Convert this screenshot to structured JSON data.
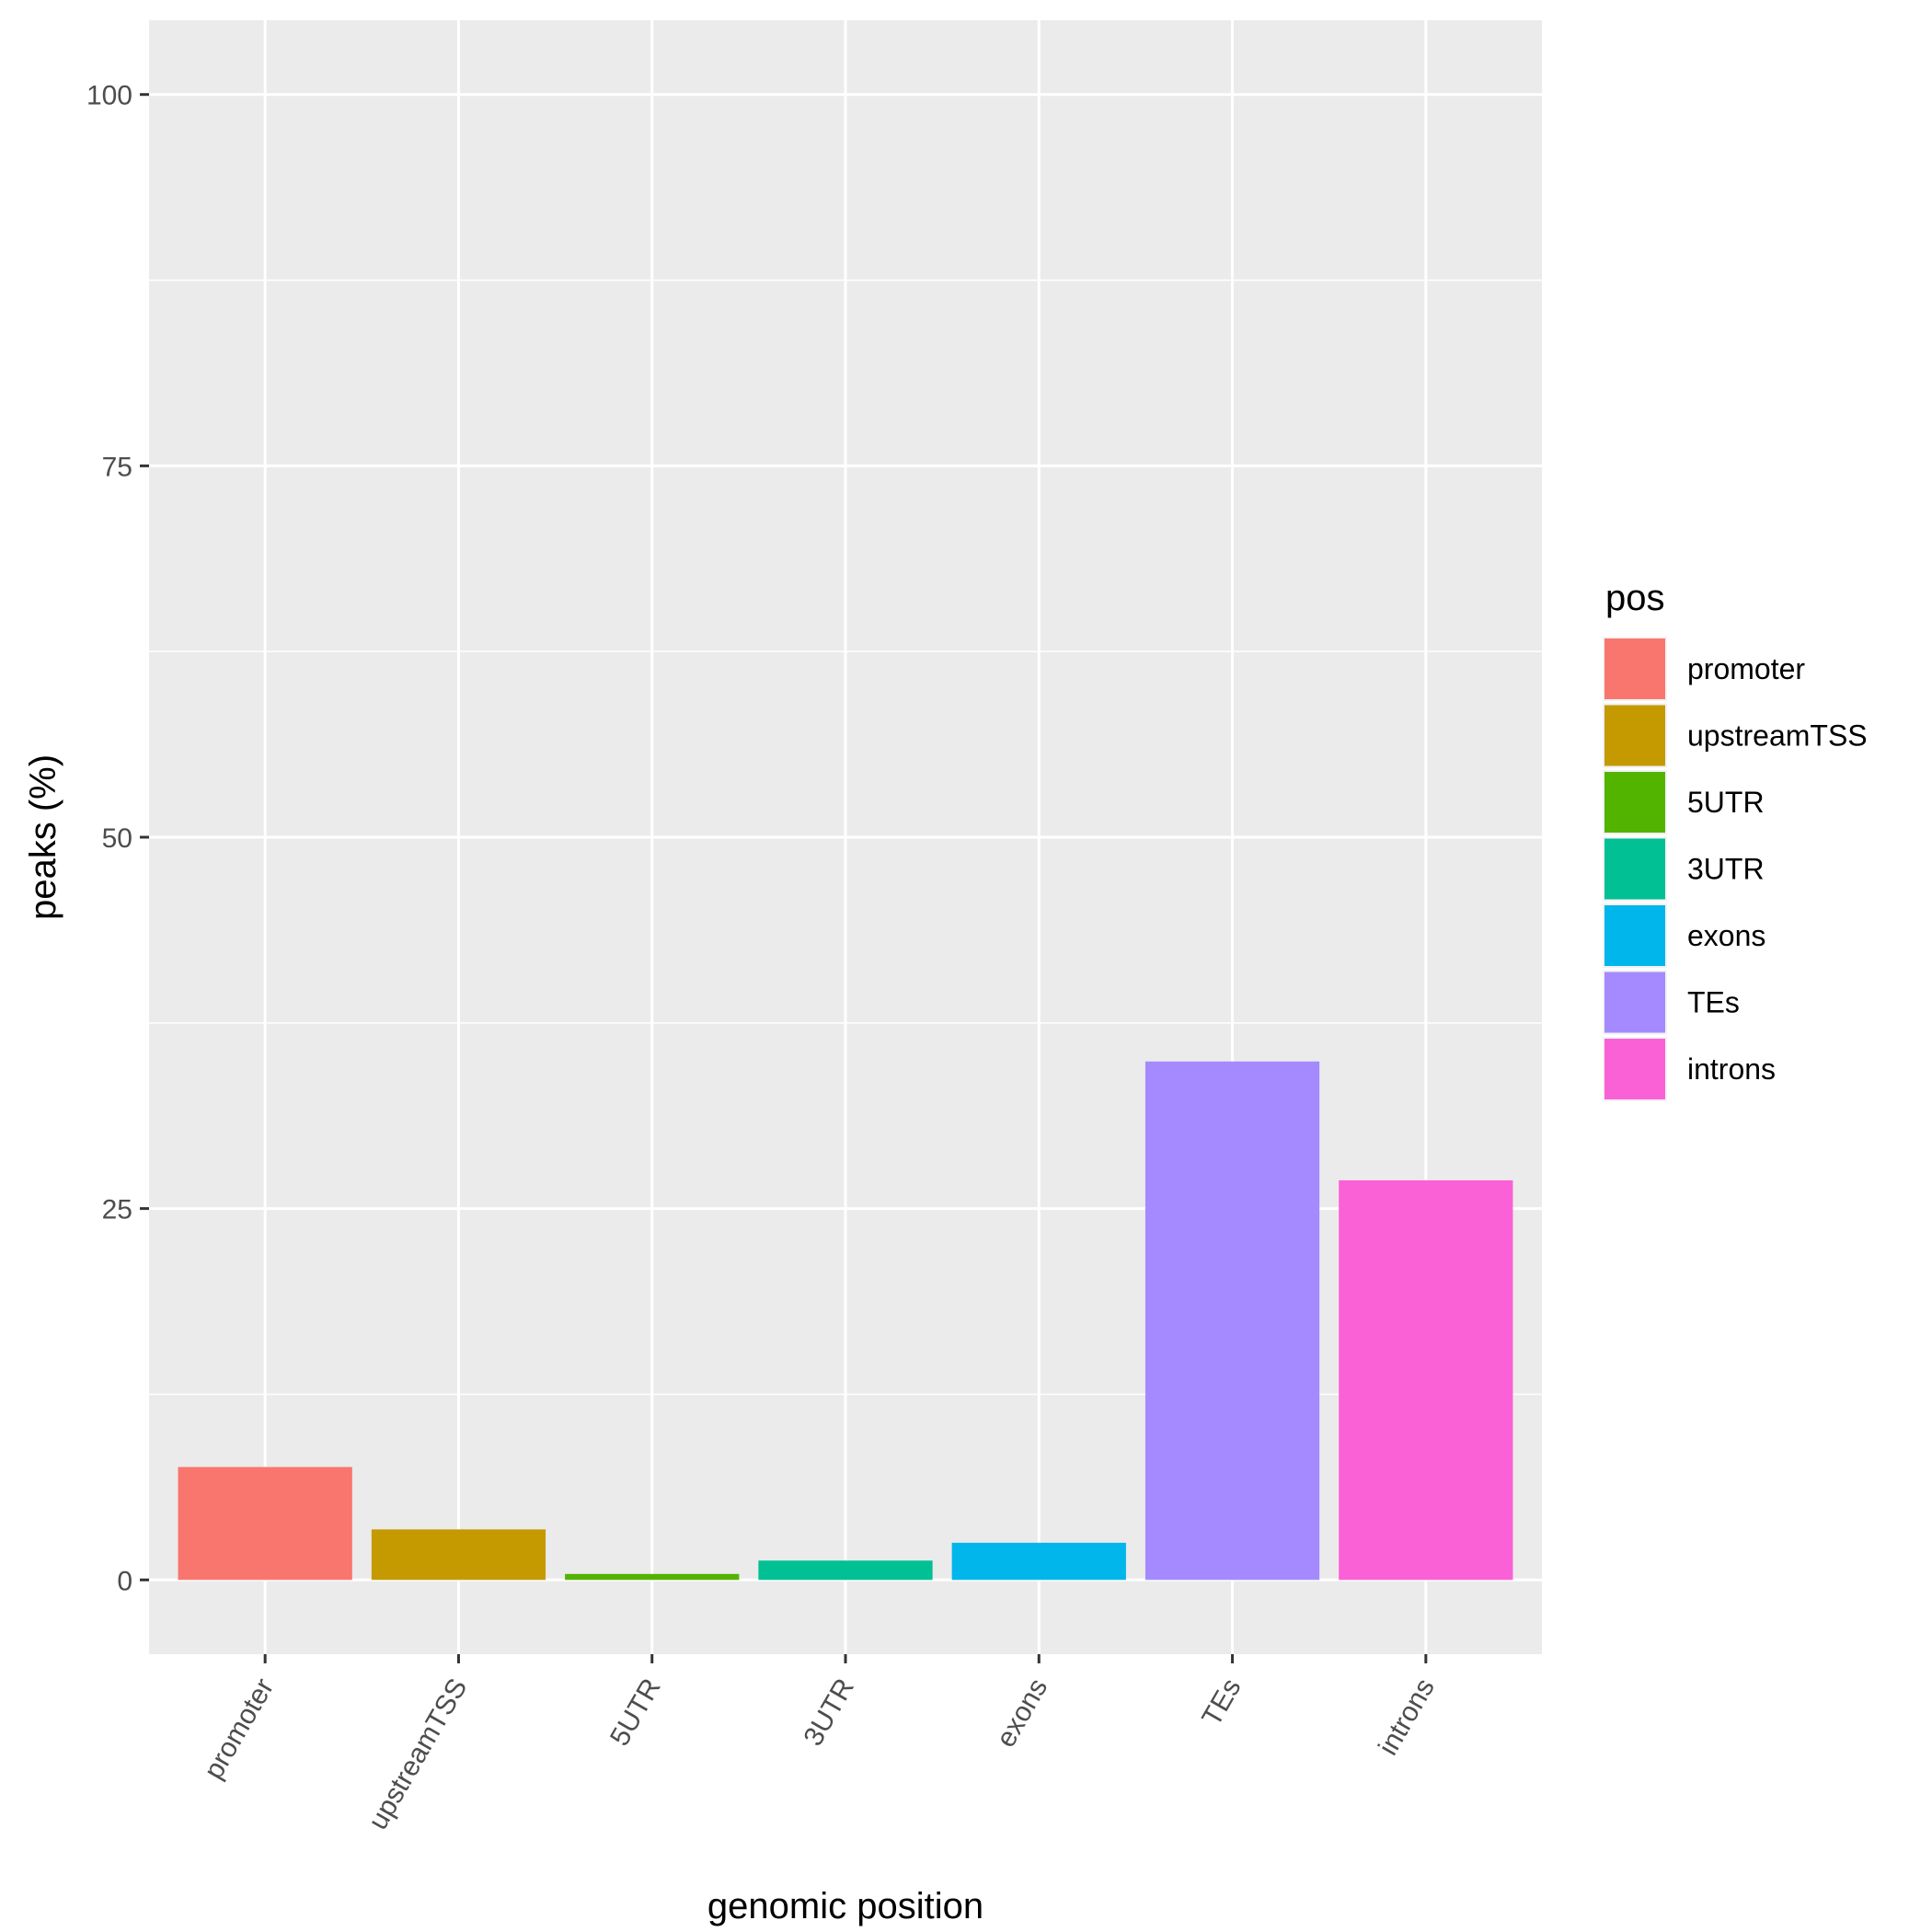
{
  "chart_data": {
    "type": "bar",
    "title": "",
    "xlabel": "genomic position",
    "ylabel": "peaks (%)",
    "ylim": [
      -5,
      105
    ],
    "y_ticks": [
      0,
      25,
      50,
      75,
      100
    ],
    "grid": true,
    "legend_position": "right",
    "legend_title": "pos",
    "categories": [
      "promoter",
      "upstreamTSS",
      "5UTR",
      "3UTR",
      "exons",
      "TEs",
      "introns"
    ],
    "values": [
      7.6,
      3.4,
      0.4,
      1.3,
      2.5,
      34.9,
      26.9
    ],
    "colors": [
      "#F8766D",
      "#C49A00",
      "#53B400",
      "#00C094",
      "#00B6EB",
      "#A58AFF",
      "#FB61D7"
    ]
  }
}
